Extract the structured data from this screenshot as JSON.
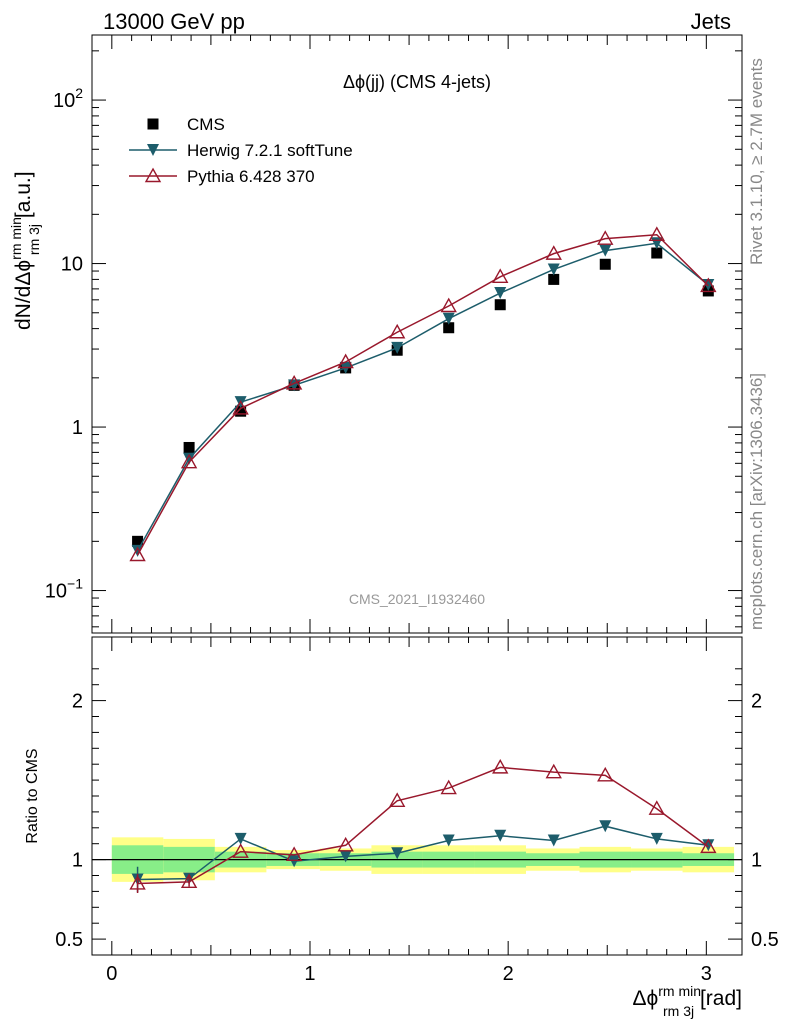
{
  "header": {
    "left_label": "13000 GeV pp",
    "right_label": "Jets"
  },
  "side": {
    "rivet": "Rivet 3.1.10, ≥ 2.7M events",
    "mcplots": "mcplots.cern.ch [arXiv:1306.3436]"
  },
  "chart_data": [
    {
      "type": "scatter",
      "panel": "main",
      "title": "Δϕ(jj) (CMS 4-jets)",
      "analysis_label": "CMS_2021_I1932460",
      "ylabel": "dN/dΔϕ rm 3j rm min [a.u.]",
      "yscale": "log",
      "ylim": [
        0.055,
        250
      ],
      "xlim": [
        -0.1,
        3.18
      ],
      "yticks": [
        {
          "value": 0.1,
          "label": "10⁻¹"
        },
        {
          "value": 1,
          "label": "1"
        },
        {
          "value": 10,
          "label": "10"
        },
        {
          "value": 100,
          "label": "10²"
        }
      ],
      "legend_position": "top-left",
      "x": [
        0.13,
        0.39,
        0.65,
        0.92,
        1.18,
        1.44,
        1.7,
        1.96,
        2.23,
        2.49,
        2.75,
        3.01
      ],
      "series": [
        {
          "name": "CMS",
          "color": "#000000",
          "marker": "square",
          "values": [
            0.2,
            0.75,
            1.25,
            1.8,
            2.3,
            2.95,
            4.05,
            5.6,
            8.0,
            9.9,
            11.6,
            6.8
          ]
        },
        {
          "name": "Herwig 7.2.1 softTune",
          "color": "#1d5d6b",
          "marker": "triangle-down",
          "values": [
            0.175,
            0.64,
            1.42,
            1.8,
            2.3,
            3.05,
            4.6,
            6.6,
            9.2,
            12.0,
            13.3,
            7.4
          ]
        },
        {
          "name": "Pythia 6.428 370",
          "color": "#99182c",
          "marker": "triangle-up-open",
          "values": [
            0.165,
            0.61,
            1.3,
            1.85,
            2.5,
            3.8,
            5.5,
            8.3,
            11.5,
            14.2,
            15.0,
            7.3
          ]
        }
      ]
    },
    {
      "type": "scatter",
      "panel": "ratio",
      "ylabel": "Ratio to CMS",
      "xlabel": "Δϕ rm 3j rm min [rad]",
      "ylim": [
        0.4,
        2.4
      ],
      "xlim": [
        -0.1,
        3.18
      ],
      "yticks": [
        0.5,
        1,
        2
      ],
      "xticks": [
        0,
        1,
        2,
        3
      ],
      "x": [
        0.13,
        0.39,
        0.65,
        0.92,
        1.18,
        1.44,
        1.7,
        1.96,
        2.23,
        2.49,
        2.75,
        3.01
      ],
      "bin_edges": [
        0.0,
        0.26,
        0.52,
        0.78,
        1.05,
        1.31,
        1.57,
        1.83,
        2.09,
        2.36,
        2.62,
        2.88,
        3.14
      ],
      "band_inner": [
        0.09,
        0.08,
        0.05,
        0.04,
        0.04,
        0.05,
        0.05,
        0.05,
        0.04,
        0.05,
        0.05,
        0.04
      ],
      "band_outer": [
        0.14,
        0.13,
        0.08,
        0.06,
        0.07,
        0.09,
        0.09,
        0.09,
        0.07,
        0.08,
        0.07,
        0.08
      ],
      "series": [
        {
          "name": "Herwig 7.2.1 softTune",
          "color": "#1d5d6b",
          "marker": "triangle-down",
          "values": [
            0.875,
            0.88,
            1.13,
            0.99,
            1.02,
            1.04,
            1.12,
            1.15,
            1.12,
            1.21,
            1.13,
            1.09
          ],
          "errors": [
            0.08,
            0.03,
            0,
            0,
            0,
            0,
            0,
            0,
            0,
            0,
            0,
            0
          ]
        },
        {
          "name": "Pythia 6.428 370",
          "color": "#99182c",
          "marker": "triangle-up-open",
          "values": [
            0.85,
            0.86,
            1.05,
            1.03,
            1.09,
            1.37,
            1.45,
            1.58,
            1.55,
            1.53,
            1.32,
            1.08
          ],
          "errors": [
            0.06,
            0.03,
            0,
            0,
            0,
            0,
            0,
            0,
            0,
            0,
            0,
            0
          ]
        }
      ],
      "reference_line": 1,
      "band_colors": {
        "inner": "#88ee88",
        "outer": "#ffff88"
      }
    }
  ]
}
